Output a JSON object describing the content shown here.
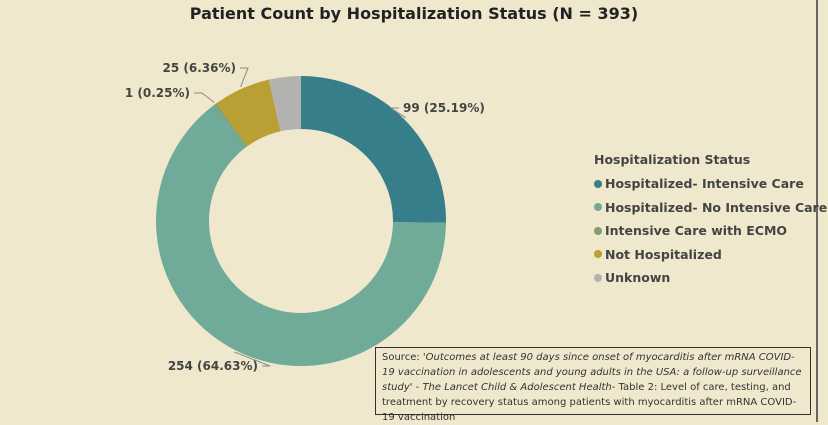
{
  "chart_data": {
    "type": "pie",
    "donut": true,
    "title": "Patient Count by Hospitalization Status (N = 393)",
    "legend_title": "Hospitalization Status",
    "legend_position": "right",
    "categories": [
      "Hospitalized- Intensive Care",
      "Hospitalized- No Intensive Care",
      "Intensive Care with ECMO",
      "Not Hospitalized",
      "Unknown"
    ],
    "values": [
      99,
      254,
      1,
      25,
      14
    ],
    "colors": [
      "#367e89",
      "#6fab98",
      "#819c73",
      "#b9a035",
      "#b3b2b0"
    ],
    "data_labels": [
      "99 (25.19%)",
      "254 (64.63%)",
      "1 (0.25%)",
      "25 (6.36%)",
      ""
    ]
  },
  "source": {
    "prefix": "Source:  ",
    "italic": "'Outcomes at least 90 days since onset of myocarditis after mRNA COVID-19 vaccination in adolescents and young adults in the USA: a follow-up surveillance study' - The Lancet Child & Adolescent Health",
    "rest": "- Table 2: Level of care, testing, and treatment by recovery status among patients with myocarditis after mRNA COVID-19 vaccination"
  }
}
